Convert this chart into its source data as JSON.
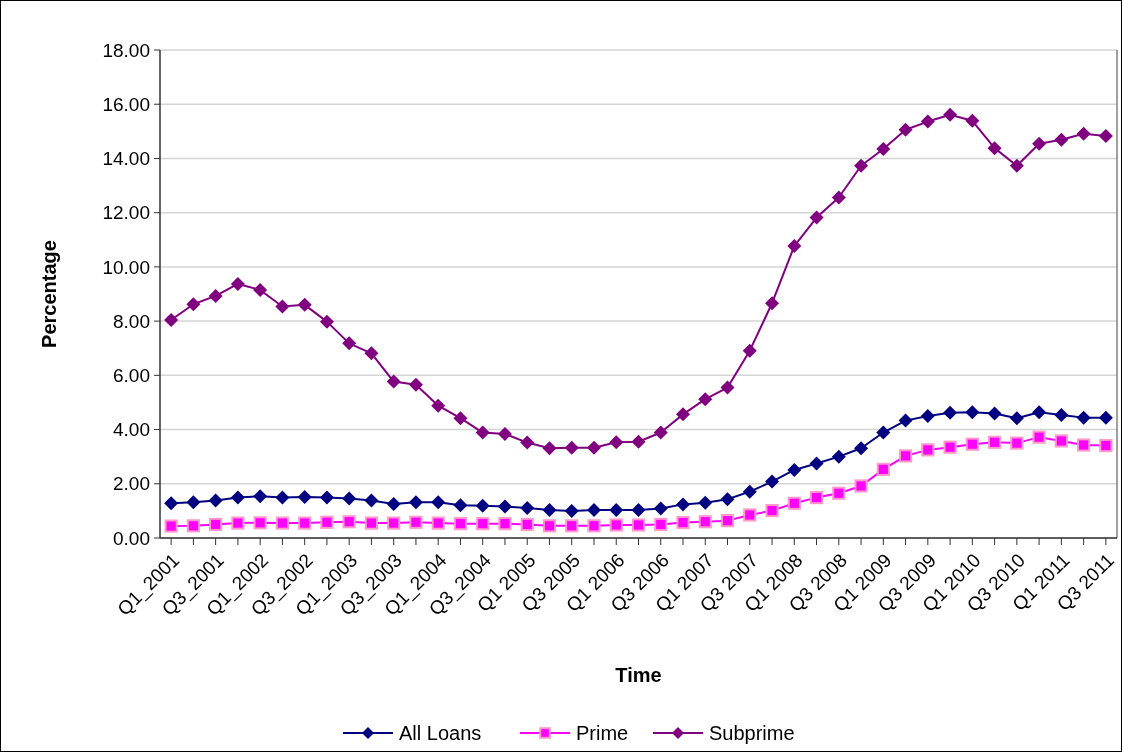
{
  "chart_data": {
    "type": "line",
    "xlabel": "Time",
    "ylabel": "Percentage",
    "categories": [
      "Q1_2001",
      null,
      "Q3_2001",
      null,
      "Q1_2002",
      null,
      "Q3_2002",
      null,
      "Q1_2003",
      null,
      "Q3_2003",
      null,
      "Q1_2004",
      null,
      "Q3_2004",
      null,
      "Q1 2005",
      null,
      "Q3 2005",
      null,
      "Q1 2006",
      null,
      "Q3 2006",
      null,
      "Q1 2007",
      null,
      "Q3 2007",
      null,
      "Q1 2008",
      null,
      "Q3 2008",
      null,
      "Q1 2009",
      null,
      "Q3 2009",
      null,
      "Q1 2010",
      null,
      "Q3 2010",
      null,
      "Q1 2011",
      null,
      "Q3 2011"
    ],
    "series": [
      {
        "name": "All Loans",
        "color": "#000080",
        "marker": "diamond",
        "values": [
          1.28,
          1.32,
          1.38,
          1.49,
          1.54,
          1.49,
          1.51,
          1.49,
          1.46,
          1.38,
          1.25,
          1.32,
          1.32,
          1.21,
          1.19,
          1.16,
          1.11,
          1.03,
          1.0,
          1.03,
          1.03,
          1.03,
          1.09,
          1.24,
          1.3,
          1.43,
          1.71,
          2.08,
          2.51,
          2.75,
          3.0,
          3.31,
          3.89,
          4.33,
          4.5,
          4.62,
          4.64,
          4.59,
          4.42,
          4.64,
          4.54,
          4.44,
          4.44
        ]
      },
      {
        "name": "Prime",
        "color": "#ff00ff",
        "marker": "square",
        "values": [
          0.44,
          0.45,
          0.5,
          0.55,
          0.56,
          0.55,
          0.55,
          0.58,
          0.6,
          0.55,
          0.55,
          0.58,
          0.55,
          0.53,
          0.53,
          0.53,
          0.5,
          0.45,
          0.45,
          0.45,
          0.48,
          0.48,
          0.5,
          0.57,
          0.6,
          0.64,
          0.85,
          1.01,
          1.28,
          1.49,
          1.65,
          1.92,
          2.53,
          3.03,
          3.25,
          3.35,
          3.46,
          3.53,
          3.5,
          3.72,
          3.58,
          3.43,
          3.41
        ]
      },
      {
        "name": "Subprime",
        "color": "#800080",
        "marker": "diamond",
        "values": [
          8.04,
          8.62,
          8.93,
          9.37,
          9.15,
          8.54,
          8.6,
          7.98,
          7.18,
          6.81,
          5.77,
          5.65,
          4.88,
          4.42,
          3.89,
          3.84,
          3.52,
          3.31,
          3.33,
          3.33,
          3.53,
          3.55,
          3.89,
          4.56,
          5.12,
          5.55,
          6.91,
          8.66,
          10.77,
          11.82,
          12.56,
          13.73,
          14.35,
          15.06,
          15.36,
          15.61,
          15.39,
          14.38,
          13.73,
          14.54,
          14.69,
          14.91,
          14.83
        ]
      }
    ],
    "ylim": [
      0,
      18
    ],
    "yticks": [
      {
        "value": 0,
        "label": "0.00"
      },
      {
        "value": 2,
        "label": "2.00"
      },
      {
        "value": 4,
        "label": "4.00"
      },
      {
        "value": 6,
        "label": "6.00"
      },
      {
        "value": 8,
        "label": "8.00"
      },
      {
        "value": 10,
        "label": "10.00"
      },
      {
        "value": 12,
        "label": "12.00"
      },
      {
        "value": 14,
        "label": "14.00"
      },
      {
        "value": 16,
        "label": "16.00"
      },
      {
        "value": 18,
        "label": "18.00"
      }
    ],
    "grid": "y",
    "legend": "bottom",
    "line_style": "solid"
  }
}
